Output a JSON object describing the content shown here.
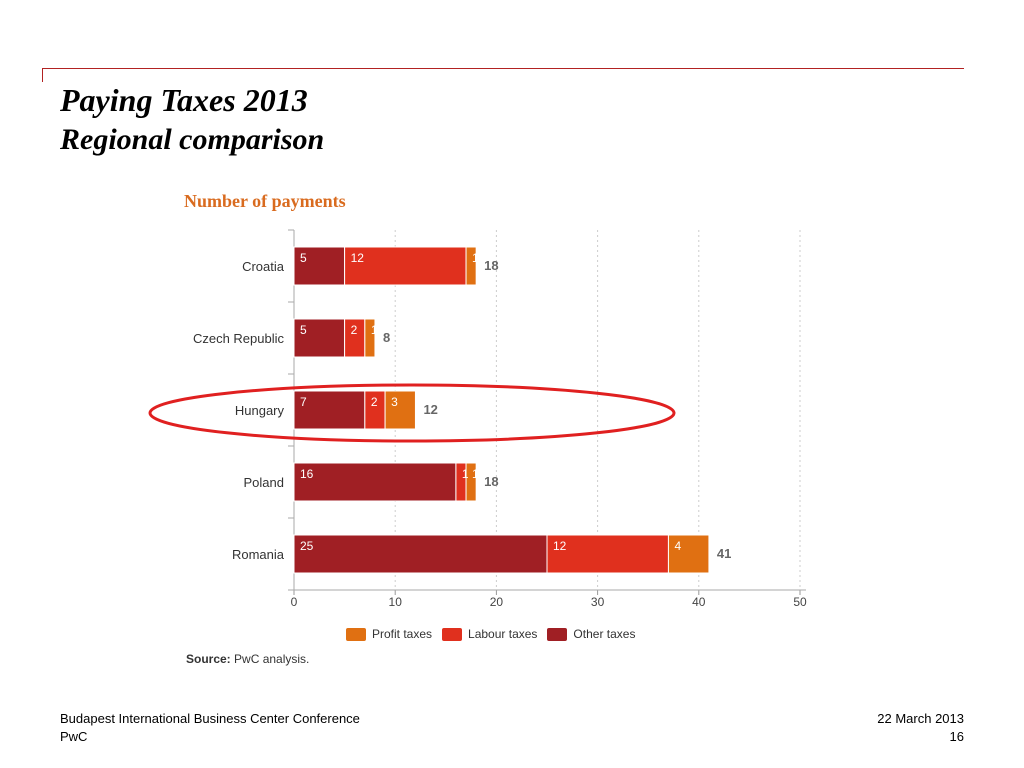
{
  "slide": {
    "title": "Paying Taxes 2013",
    "subtitle": "Regional comparison",
    "footer_left": [
      "Budapest International Business Center Conference",
      "PwC"
    ],
    "footer_right": [
      "22 March 2013",
      "16"
    ],
    "accent_color": "#b22222"
  },
  "source": {
    "label": "Source:",
    "text": "PwC analysis."
  },
  "highlight": {
    "category": "Hungary",
    "color": "#e02020"
  },
  "chart_data": {
    "type": "bar",
    "orientation": "horizontal",
    "stacked": true,
    "title": "Number of payments",
    "categories": [
      "Croatia",
      "Czech Republic",
      "Hungary",
      "Poland",
      "Romania"
    ],
    "series": [
      {
        "name": "Other taxes",
        "color": "#a01f24",
        "values": [
          5,
          5,
          7,
          16,
          25
        ]
      },
      {
        "name": "Labour taxes",
        "color": "#e0301e",
        "values": [
          12,
          2,
          2,
          1,
          12
        ]
      },
      {
        "name": "Profit taxes",
        "color": "#e07012",
        "values": [
          1,
          1,
          3,
          1,
          4
        ]
      }
    ],
    "totals": [
      18,
      8,
      12,
      18,
      41
    ],
    "xlim": [
      0,
      50
    ],
    "xticks": [
      0,
      10,
      20,
      30,
      40,
      50
    ],
    "grid": "vertical dotted",
    "legend_position": "bottom",
    "legend_order": [
      "Profit taxes",
      "Labour taxes",
      "Other taxes"
    ]
  }
}
